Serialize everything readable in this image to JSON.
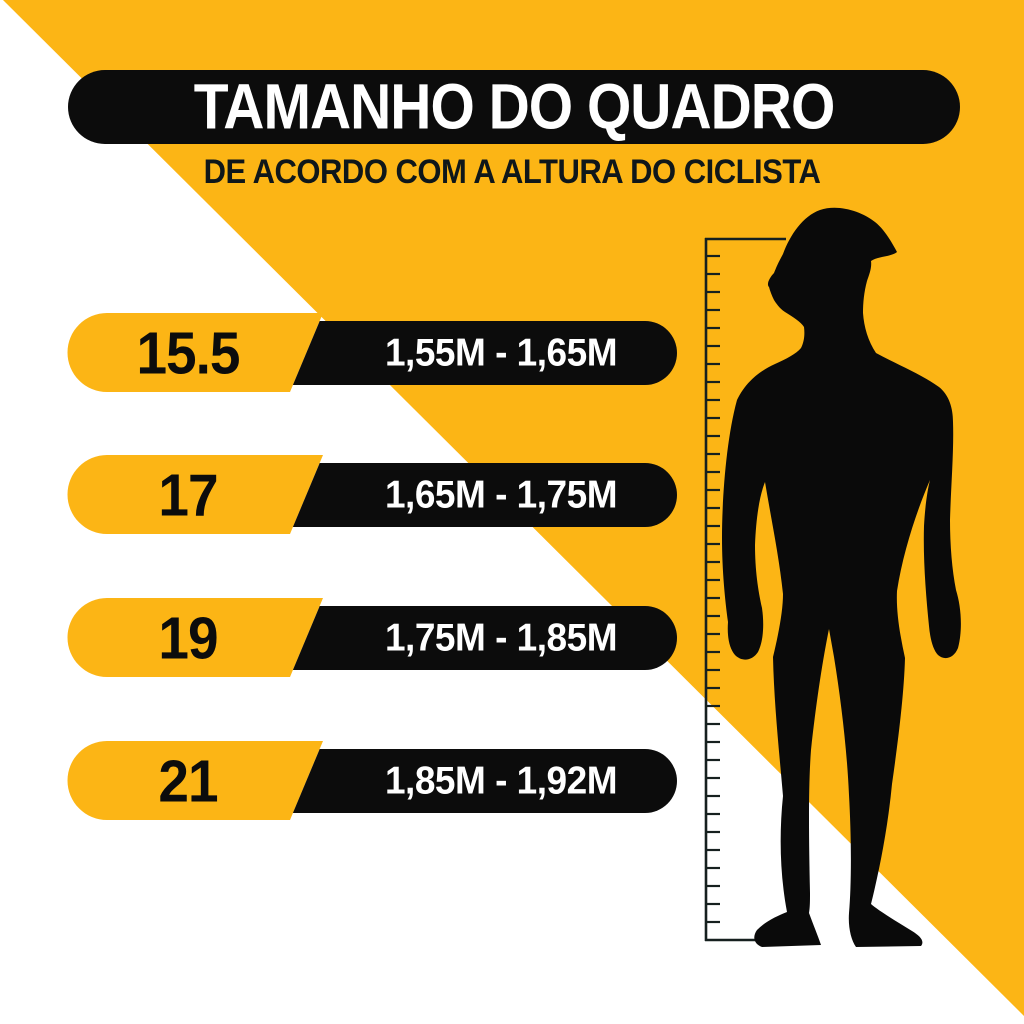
{
  "header": {
    "title": "TAMANHO DO QUADRO",
    "subtitle": "DE ACORDO COM A ALTURA DO CICLISTA"
  },
  "size_chart": {
    "rows": [
      {
        "frame_size": "15.5",
        "height_range": "1,55M - 1,65M"
      },
      {
        "frame_size": "17",
        "height_range": "1,65M - 1,75M"
      },
      {
        "frame_size": "19",
        "height_range": "1,75M - 1,85M"
      },
      {
        "frame_size": "21",
        "height_range": "1,85M - 1,92M"
      }
    ]
  },
  "figure": {
    "icon": "cyclist-silhouette-with-height-ruler",
    "ruler_tick_count": 38
  },
  "colors": {
    "accent_yellow": "#FCB515",
    "pill_black": "#0C0C0C",
    "panel_white": "#FFFFFF",
    "title_text": "#FFFFFF",
    "subtitle_text": "#0F171A"
  },
  "chart_data": {
    "type": "table",
    "title": "TAMANHO DO QUADRO",
    "subtitle": "DE ACORDO COM A ALTURA DO CICLISTA",
    "columns": [
      "frame_size",
      "cyclist_height_range"
    ],
    "rows": [
      [
        "15.5",
        "1,55M - 1,65M"
      ],
      [
        "17",
        "1,65M - 1,75M"
      ],
      [
        "19",
        "1,75M - 1,85M"
      ],
      [
        "21",
        "1,85M - 1,92M"
      ]
    ]
  }
}
